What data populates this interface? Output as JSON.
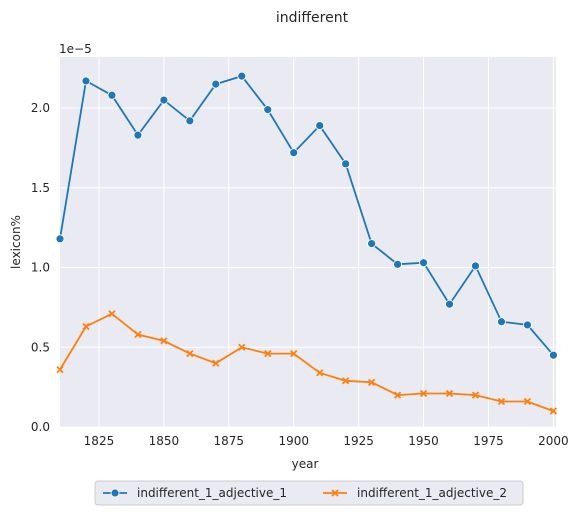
{
  "chart_data": {
    "type": "line",
    "title": "indifferent",
    "xlabel": "year",
    "ylabel": "lexicon%",
    "y_offset_label": "1e−5",
    "xlim": [
      1810,
      2001
    ],
    "ylim": [
      0,
      2.32
    ],
    "x_ticks": [
      1825,
      1850,
      1875,
      1900,
      1925,
      1950,
      1975,
      2000
    ],
    "y_ticks": [
      0.0,
      0.5,
      1.0,
      1.5,
      2.0
    ],
    "x_tick_labels": [
      "1825",
      "1850",
      "1875",
      "1900",
      "1925",
      "1950",
      "1975",
      "2000"
    ],
    "y_tick_labels": [
      "0.0",
      "0.5",
      "1.0",
      "1.5",
      "2.0"
    ],
    "grid": true,
    "legend_position": "bottom-center",
    "x": [
      1810,
      1820,
      1830,
      1840,
      1850,
      1860,
      1870,
      1880,
      1890,
      1900,
      1910,
      1920,
      1930,
      1940,
      1950,
      1960,
      1970,
      1980,
      1990,
      2000
    ],
    "series": [
      {
        "name": "indifferent_1_adjective_1",
        "color": "#1f77b4",
        "marker": "circle",
        "values": [
          1.18,
          2.17,
          2.08,
          1.83,
          2.05,
          1.92,
          2.15,
          2.2,
          1.99,
          1.72,
          1.89,
          1.65,
          1.15,
          1.02,
          1.03,
          0.77,
          1.01,
          0.66,
          0.64,
          0.45
        ]
      },
      {
        "name": "indifferent_1_adjective_2",
        "color": "#ff7f0e",
        "marker": "x",
        "values": [
          0.36,
          0.63,
          0.71,
          0.58,
          0.54,
          0.46,
          0.4,
          0.5,
          0.46,
          0.46,
          0.34,
          0.29,
          0.28,
          0.2,
          0.21,
          0.21,
          0.2,
          0.16,
          0.16,
          0.1
        ]
      }
    ]
  }
}
